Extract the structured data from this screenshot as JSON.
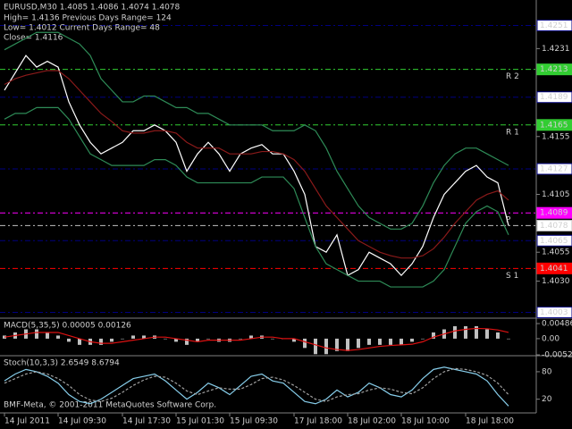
{
  "chart_data": [
    {
      "type": "line",
      "title": "EURUSD,M30  1.4085 1.4086 1.4074 1.4078",
      "annotations": [
        "High= 1.4136    Previous Days Range= 124",
        "Low= 1.4012    Current Days Range= 48",
        "Close= 1.4116"
      ],
      "categories": [
        "14 Jul 2011",
        null,
        null,
        null,
        null,
        "14 Jul 09:30",
        null,
        null,
        null,
        null,
        null,
        "14 Jul 17:30",
        null,
        null,
        null,
        null,
        "15 Jul 01:30",
        null,
        null,
        null,
        null,
        "15 Jul 09:30",
        null,
        null,
        null,
        null,
        null,
        "17 Jul 18:00",
        null,
        null,
        null,
        null,
        "18 Jul 02:00",
        null,
        null,
        null,
        null,
        "18 Jul 10:00",
        null,
        null,
        null,
        null,
        null,
        "18 Jul 18:00",
        null,
        null,
        null,
        null
      ],
      "series": [
        {
          "color": "#ffffff",
          "values": [
            1.4195,
            1.421,
            1.4225,
            1.4215,
            1.422,
            1.4215,
            1.4185,
            1.4165,
            1.415,
            1.414,
            1.4145,
            1.415,
            1.416,
            1.416,
            1.4165,
            1.416,
            1.415,
            1.4125,
            1.414,
            1.415,
            1.414,
            1.4125,
            1.414,
            1.4145,
            1.4148,
            1.414,
            1.414,
            1.4125,
            1.4105,
            1.406,
            1.4055,
            1.407,
            1.4035,
            1.404,
            1.4055,
            1.405,
            1.4045,
            1.4035,
            1.4045,
            1.406,
            1.4085,
            1.4105,
            1.4115,
            1.4125,
            1.413,
            1.412,
            1.4115,
            1.4078
          ]
        },
        {
          "color": "#8b1a1a",
          "values": [
            1.42,
            1.4205,
            1.4208,
            1.421,
            1.4212,
            1.4212,
            1.4205,
            1.4195,
            1.4185,
            1.4175,
            1.4168,
            1.416,
            1.4158,
            1.4158,
            1.416,
            1.416,
            1.4158,
            1.415,
            1.4145,
            1.4145,
            1.4145,
            1.414,
            1.414,
            1.414,
            1.4142,
            1.4142,
            1.414,
            1.4135,
            1.4125,
            1.411,
            1.4095,
            1.4085,
            1.4075,
            1.4065,
            1.406,
            1.4055,
            1.4052,
            1.405,
            1.405,
            1.4052,
            1.4058,
            1.4068,
            1.408,
            1.409,
            1.41,
            1.4105,
            1.4108,
            1.41
          ]
        },
        {
          "color": "#2e8b57",
          "values": [
            1.423,
            1.4235,
            1.424,
            1.4245,
            1.4245,
            1.4245,
            1.424,
            1.4235,
            1.4225,
            1.4205,
            1.4195,
            1.4185,
            1.4185,
            1.419,
            1.419,
            1.4185,
            1.418,
            1.418,
            1.4175,
            1.4175,
            1.417,
            1.4165,
            1.4165,
            1.4165,
            1.4165,
            1.416,
            1.416,
            1.416,
            1.4165,
            1.416,
            1.4145,
            1.4125,
            1.411,
            1.4095,
            1.4085,
            1.408,
            1.4075,
            1.4075,
            1.408,
            1.4095,
            1.4115,
            1.413,
            1.414,
            1.4145,
            1.4145,
            1.414,
            1.4135,
            1.413
          ]
        },
        {
          "color": "#2e8b57",
          "values": [
            1.417,
            1.4175,
            1.4175,
            1.418,
            1.418,
            1.418,
            1.417,
            1.4155,
            1.414,
            1.4135,
            1.413,
            1.413,
            1.413,
            1.413,
            1.4135,
            1.4135,
            1.413,
            1.412,
            1.4115,
            1.4115,
            1.4115,
            1.4115,
            1.4115,
            1.4115,
            1.412,
            1.412,
            1.412,
            1.411,
            1.4085,
            1.406,
            1.4045,
            1.404,
            1.4035,
            1.403,
            1.403,
            1.403,
            1.4025,
            1.4025,
            1.4025,
            1.4025,
            1.403,
            1.404,
            1.406,
            1.408,
            1.409,
            1.4095,
            1.409,
            1.407
          ]
        }
      ],
      "levels": [
        {
          "value": 1.4251,
          "color": "#000080"
        },
        {
          "value": 1.4213,
          "color": "#32cd32",
          "tag": "R 2"
        },
        {
          "value": 1.4189,
          "color": "#000080"
        },
        {
          "value": 1.4165,
          "color": "#32cd32",
          "tag": "R 1"
        },
        {
          "value": 1.4127,
          "color": "#000080"
        },
        {
          "value": 1.4089,
          "color": "#ff00ff",
          "tag": "P"
        },
        {
          "value": 1.4078,
          "color": "#c0c0c0"
        },
        {
          "value": 1.4065,
          "color": "#000080"
        },
        {
          "value": 1.4041,
          "color": "#ff0000",
          "tag": "S 1"
        },
        {
          "value": 1.4003,
          "color": "#000080"
        }
      ],
      "ylim": [
        1.3998,
        1.4273
      ],
      "yticks": [
        1.4231,
        1.4155,
        1.4105,
        1.4055,
        {
          "value": 1.403,
          "label": "1.4030"
        }
      ],
      "grid": false
    },
    {
      "type": "bar",
      "title": "MACD(5,35,5) 0.00005 0.00126",
      "series": [
        {
          "color": "#c0c0c0",
          "values": [
            0.001,
            0.002,
            0.003,
            0.003,
            0.002,
            0.001,
            -0.001,
            -0.002,
            -0.002,
            -0.002,
            -0.001,
            0,
            0.001,
            0.001,
            0.001,
            0,
            -0.001,
            -0.002,
            -0.001,
            0,
            -0.001,
            -0.001,
            0,
            0.001,
            0.001,
            0,
            0,
            -0.001,
            -0.003,
            -0.005,
            -0.005,
            -0.004,
            -0.004,
            -0.003,
            -0.002,
            -0.002,
            -0.002,
            -0.002,
            -0.001,
            0,
            0.002,
            0.003,
            0.004,
            0.004,
            0.004,
            0.003,
            0.002,
            0
          ]
        },
        {
          "color": "#dd1111",
          "values": [
            0.0005,
            0.001,
            0.0015,
            0.002,
            0.002,
            0.002,
            0.001,
            0,
            -0.001,
            -0.0015,
            -0.0015,
            -0.001,
            -0.0005,
            0,
            0.0005,
            0.0005,
            0,
            -0.0005,
            -0.001,
            -0.0005,
            -0.0005,
            -0.0005,
            -0.0005,
            0,
            0.0005,
            0.0005,
            0,
            0,
            -0.001,
            -0.002,
            -0.003,
            -0.0035,
            -0.0038,
            -0.0035,
            -0.003,
            -0.0025,
            -0.0022,
            -0.002,
            -0.0018,
            -0.001,
            0.0005,
            0.0015,
            0.0025,
            0.003,
            0.0033,
            0.0032,
            0.0028,
            0.002
          ]
        }
      ],
      "ylim": [
        -0.0055,
        0.0066
      ],
      "yticks": [
        0.00486,
        {
          "value": 0,
          "label": "0.00"
        },
        -0.00522
      ]
    },
    {
      "type": "line",
      "title": "Stoch(10,3,3) 2.6549 8.6794",
      "series": [
        {
          "color": "#87ceeb",
          "values": [
            60,
            75,
            85,
            80,
            70,
            55,
            30,
            15,
            10,
            20,
            35,
            50,
            65,
            70,
            75,
            60,
            40,
            20,
            35,
            55,
            45,
            30,
            50,
            70,
            75,
            60,
            55,
            35,
            15,
            10,
            20,
            40,
            25,
            35,
            55,
            45,
            30,
            25,
            40,
            65,
            85,
            90,
            85,
            80,
            75,
            60,
            30,
            5
          ]
        },
        {
          "color": "#a0a0a0",
          "dashed": true,
          "values": [
            55,
            65,
            75,
            80,
            75,
            65,
            50,
            30,
            18,
            15,
            22,
            35,
            50,
            62,
            70,
            68,
            55,
            38,
            30,
            38,
            45,
            42,
            42,
            52,
            65,
            68,
            62,
            50,
            35,
            20,
            15,
            25,
            30,
            32,
            40,
            45,
            42,
            35,
            32,
            45,
            65,
            80,
            87,
            85,
            80,
            72,
            55,
            30
          ]
        }
      ],
      "ylim": [
        -10,
        115
      ],
      "yticks": [
        80,
        20
      ]
    }
  ],
  "watermark": "BMF-Meta, © 2001-2011 MetaQuotes Software Corp."
}
